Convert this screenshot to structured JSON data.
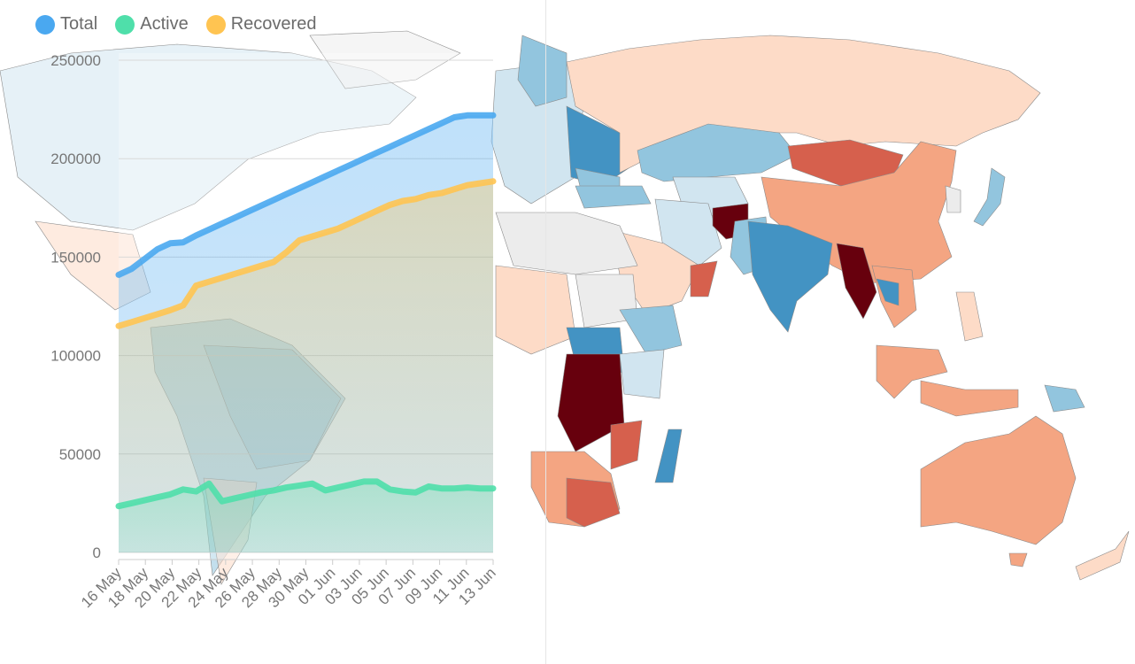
{
  "legend": {
    "items": [
      {
        "label": "Total",
        "color": "#4aa8f0"
      },
      {
        "label": "Active",
        "color": "#4fdfaa"
      },
      {
        "label": "Recovered",
        "color": "#ffc451"
      }
    ]
  },
  "chart_data": {
    "type": "area",
    "title": "",
    "xlabel": "",
    "ylabel": "",
    "ylim": [
      0,
      250000
    ],
    "yticks": [
      0,
      50000,
      100000,
      150000,
      200000,
      250000
    ],
    "x_tick_labels": [
      "16 May",
      "18 May",
      "20 May",
      "22 May",
      "24 May",
      "26 May",
      "28 May",
      "30 May",
      "01 Jun",
      "03 Jun",
      "05 Jun",
      "07 Jun",
      "09 Jun",
      "11 Jun",
      "13 Jun"
    ],
    "grid": true,
    "legend_position": "top-left",
    "series": [
      {
        "name": "Total",
        "color": "#4aa8f0",
        "values": [
          141000,
          144000,
          149000,
          154000,
          157000,
          157500,
          161000,
          164000,
          167000,
          170000,
          173000,
          176000,
          179000,
          182000,
          185000,
          188000,
          191000,
          194000,
          197000,
          200000,
          203000,
          206000,
          209000,
          212000,
          215000,
          218000,
          221000,
          222000,
          222000,
          222000
        ]
      },
      {
        "name": "Active",
        "color": "#4fdfaa",
        "values": [
          23500,
          25000,
          26500,
          28000,
          29500,
          32000,
          31000,
          35000,
          26000,
          27500,
          29000,
          30500,
          31500,
          33000,
          34000,
          35000,
          31500,
          33000,
          34500,
          36000,
          36000,
          32000,
          31000,
          30500,
          33500,
          32500,
          32500,
          33000,
          32500,
          32500
        ]
      },
      {
        "name": "Recovered",
        "color": "#ffc451",
        "values": [
          115000,
          117000,
          119000,
          121000,
          123000,
          125500,
          135500,
          137500,
          139500,
          141500,
          143500,
          145500,
          147500,
          152500,
          158500,
          160500,
          162500,
          164500,
          167500,
          170500,
          173500,
          176500,
          178500,
          179500,
          181500,
          182500,
          184500,
          186500,
          187500,
          188500
        ]
      }
    ]
  },
  "map": {
    "type": "choropleth",
    "colors": {
      "darkred": "#67000d",
      "red": "#d6604d",
      "orange": "#f4a582",
      "peach": "#fddbc7",
      "lightgray": "#ececec",
      "paleblue": "#d1e5f0",
      "lightblue": "#92c5de",
      "blue": "#4393c3",
      "darkblue": "#2166ac"
    }
  }
}
